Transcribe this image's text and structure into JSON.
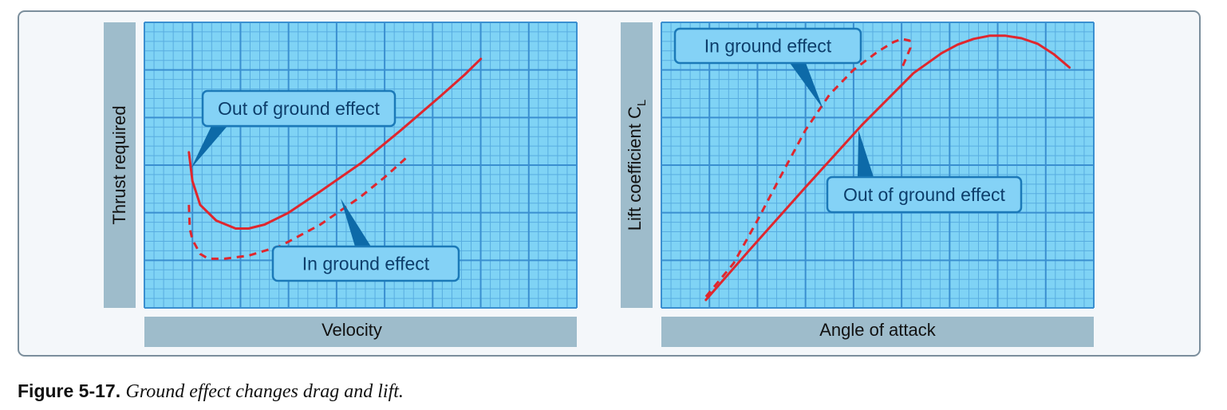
{
  "figure": {
    "number": "Figure 5-17.",
    "caption": "Ground effect changes drag and lift."
  },
  "colors": {
    "grid_bg": "#7fd3f5",
    "grid_line": "#3a8fd0",
    "axis_band": "#9ebccb",
    "curve": "#e0262d",
    "callout_fill": "#84d2f6",
    "callout_border": "#1b79b8",
    "callout_pointer": "#0d6aa8"
  },
  "chart_data": [
    {
      "type": "line",
      "title": "",
      "xlabel": "Velocity",
      "ylabel": "Thrust required",
      "xlim": [
        0,
        100
      ],
      "ylim": [
        0,
        100
      ],
      "grid": true,
      "series": [
        {
          "name": "Out of ground effect",
          "style": "solid",
          "x": [
            10.3,
            11.1,
            12.9,
            16.6,
            21.1,
            24.1,
            27.8,
            33.3,
            40.7,
            50,
            59.3,
            68.5,
            74.1,
            75.9,
            77.8
          ],
          "y": [
            54.5,
            44.4,
            36.1,
            30.6,
            27.8,
            27.8,
            29.2,
            33.3,
            40.8,
            50.6,
            62.2,
            74.2,
            81.7,
            84.4,
            87.2
          ]
        },
        {
          "name": "In ground effect",
          "style": "dashed",
          "x": [
            10.3,
            10.5,
            11.1,
            12.9,
            14.8,
            18.5,
            24.1,
            31.5,
            40.7,
            50,
            55.6,
            61.1
          ],
          "y": [
            36.1,
            27.8,
            23.9,
            18.9,
            17.2,
            17.2,
            18.3,
            21.7,
            29.2,
            38.9,
            45.8,
            53.3
          ]
        }
      ],
      "annotations": [
        {
          "text": "Out of ground effect",
          "target": [
            10.8,
            48.9
          ]
        },
        {
          "text": "In ground effect",
          "target": [
            45.4,
            38.3
          ]
        }
      ]
    },
    {
      "type": "line",
      "title": "",
      "xlabel": "Angle of attack",
      "ylabel_main": "Lift coefficient C",
      "ylabel_subscript": "L",
      "xlim": [
        0,
        100
      ],
      "ylim": [
        0,
        100
      ],
      "grid": true,
      "series": [
        {
          "name": "Out of ground effect",
          "style": "solid",
          "x": [
            10.3,
            20.4,
            33.3,
            46.3,
            58.3,
            64.8,
            68.5,
            72.2,
            75.9,
            79.6,
            83.3,
            87.0,
            90.7,
            94.4
          ],
          "y": [
            2.8,
            20.3,
            42.2,
            63.9,
            82.2,
            89.2,
            92.2,
            94.2,
            95.3,
            95.3,
            94.4,
            92.5,
            88.9,
            84.2
          ]
        },
        {
          "name": "In ground effect",
          "style": "dashed",
          "x": [
            10.3,
            16.7,
            22.2,
            27.8,
            33.3,
            38.9,
            44.4,
            50.0,
            53.7,
            55.6,
            57.4,
            57.6,
            55.6
          ],
          "y": [
            3.9,
            15.6,
            30.6,
            46.7,
            62.2,
            74.7,
            83.3,
            89.7,
            93.1,
            94.2,
            93.6,
            91.1,
            83.9
          ]
        }
      ],
      "annotations": [
        {
          "text": "In ground effect",
          "target": [
            37.4,
            69.7
          ]
        },
        {
          "text": "Out of ground effect",
          "target": [
            45.6,
            62.2
          ]
        }
      ]
    }
  ]
}
